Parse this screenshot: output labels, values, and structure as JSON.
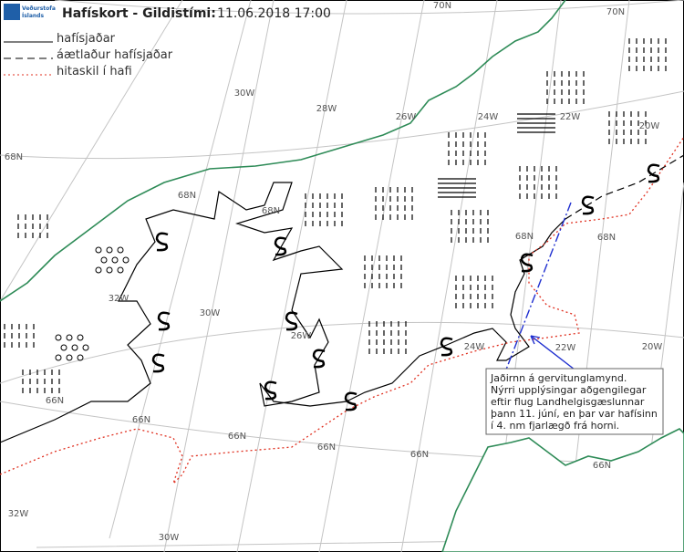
{
  "header": {
    "logo": [
      "Veðurstofa",
      "Íslands"
    ],
    "title": "Hafískort - Gildistími:",
    "time": "11.06.2018 17:00"
  },
  "legend": [
    {
      "label": "hafísjaðar"
    },
    {
      "label": "áætlaður hafísjaðar"
    },
    {
      "label": "hitaskil í hafi"
    }
  ],
  "graticule_labels": [
    "70N",
    "70N",
    "68N",
    "68N",
    "68N",
    "68N",
    "68N",
    "66N",
    "66N",
    "66N",
    "66N",
    "66N",
    "66N",
    "32W",
    "32W",
    "30W",
    "30W",
    "30W",
    "28W",
    "26W",
    "26W",
    "24W",
    "24W",
    "22W",
    "22W",
    "20W",
    "20W"
  ],
  "annotation": [
    "Jaðirnn á gervitunglamynd.",
    "Nýrri upplýsingar aðgengilegar",
    "eftir flug Landhelgisgæslunnar",
    "þann 11. júní, en þar var hafísinn",
    "í 4. nm fjarlægð frá horni."
  ]
}
